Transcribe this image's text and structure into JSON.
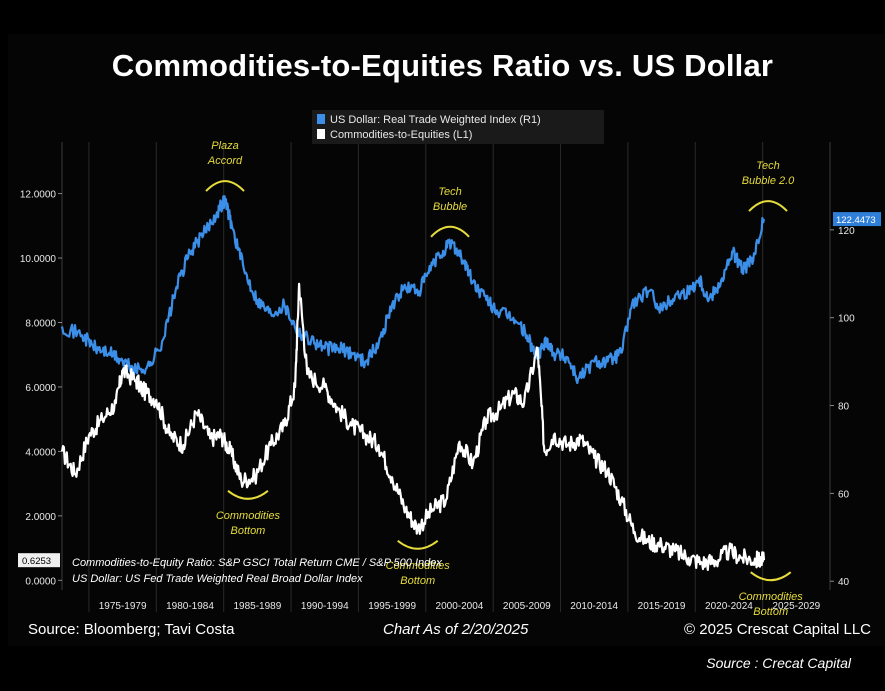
{
  "chart_data": {
    "type": "line",
    "title": "Commodities-to-Equities Ratio vs. US Dollar",
    "series": [
      {
        "name": "US Dollar: Real Trade Weighted Index (R1)",
        "axis": "right",
        "color": "#3b8fe8",
        "points": [
          [
            1973.0,
            98
          ],
          [
            1974.5,
            96
          ],
          [
            1975.5,
            93
          ],
          [
            1976.5,
            92
          ],
          [
            1977.5,
            90
          ],
          [
            1978.5,
            88
          ],
          [
            1979.5,
            89
          ],
          [
            1980.5,
            95
          ],
          [
            1981.5,
            107
          ],
          [
            1982.5,
            115
          ],
          [
            1983.5,
            119
          ],
          [
            1984.5,
            124
          ],
          [
            1985.1,
            127
          ],
          [
            1985.6,
            121
          ],
          [
            1986.5,
            111
          ],
          [
            1987.5,
            104
          ],
          [
            1988.5,
            101
          ],
          [
            1989.5,
            103
          ],
          [
            1990.5,
            97
          ],
          [
            1991.5,
            95
          ],
          [
            1992.5,
            93
          ],
          [
            1993.5,
            93
          ],
          [
            1994.5,
            92
          ],
          [
            1995.5,
            90
          ],
          [
            1996.5,
            94
          ],
          [
            1997.5,
            103
          ],
          [
            1998.5,
            107
          ],
          [
            1999.5,
            106
          ],
          [
            2000.5,
            112
          ],
          [
            2001.5,
            116
          ],
          [
            2002.0,
            117
          ],
          [
            2002.8,
            113
          ],
          [
            2003.5,
            108
          ],
          [
            2004.5,
            104
          ],
          [
            2005.5,
            101
          ],
          [
            2006.5,
            100
          ],
          [
            2007.5,
            96
          ],
          [
            2008.2,
            91
          ],
          [
            2009.0,
            95
          ],
          [
            2009.5,
            92
          ],
          [
            2010.5,
            91
          ],
          [
            2011.3,
            86
          ],
          [
            2012.5,
            90
          ],
          [
            2013.5,
            90
          ],
          [
            2014.5,
            92
          ],
          [
            2015.3,
            103
          ],
          [
            2016.5,
            106
          ],
          [
            2017.5,
            102
          ],
          [
            2018.5,
            105
          ],
          [
            2019.5,
            106
          ],
          [
            2020.3,
            109
          ],
          [
            2021.0,
            104
          ],
          [
            2022.0,
            109
          ],
          [
            2022.8,
            115
          ],
          [
            2023.5,
            111
          ],
          [
            2024.3,
            113
          ],
          [
            2025.1,
            122.4473
          ]
        ]
      },
      {
        "name": "Commodities-to-Equities (L1)",
        "axis": "left",
        "color": "#ffffff",
        "points": [
          [
            1973.0,
            4.0
          ],
          [
            1974.0,
            3.3
          ],
          [
            1975.0,
            4.5
          ],
          [
            1976.0,
            5.0
          ],
          [
            1977.0,
            5.5
          ],
          [
            1977.5,
            6.5
          ],
          [
            1978.5,
            6.2
          ],
          [
            1979.0,
            5.9
          ],
          [
            1980.0,
            5.6
          ],
          [
            1981.0,
            4.5
          ],
          [
            1982.0,
            4.2
          ],
          [
            1983.0,
            5.2
          ],
          [
            1984.0,
            4.4
          ],
          [
            1984.8,
            4.5
          ],
          [
            1985.5,
            4.0
          ],
          [
            1986.3,
            3.1
          ],
          [
            1987.3,
            3.2
          ],
          [
            1988.5,
            4.2
          ],
          [
            1989.5,
            4.8
          ],
          [
            1990.3,
            6.0
          ],
          [
            1990.6,
            9.2
          ],
          [
            1991.2,
            6.4
          ],
          [
            1992.5,
            6.0
          ],
          [
            1993.5,
            5.3
          ],
          [
            1994.5,
            4.8
          ],
          [
            1995.5,
            4.5
          ],
          [
            1996.5,
            4.2
          ],
          [
            1997.5,
            3.2
          ],
          [
            1998.5,
            2.2
          ],
          [
            1999.4,
            1.6
          ],
          [
            2000.5,
            2.2
          ],
          [
            2001.5,
            2.5
          ],
          [
            2002.5,
            4.3
          ],
          [
            2003.5,
            3.6
          ],
          [
            2004.5,
            5.0
          ],
          [
            2005.5,
            5.3
          ],
          [
            2006.5,
            5.8
          ],
          [
            2007.3,
            5.5
          ],
          [
            2008.3,
            7.2
          ],
          [
            2008.8,
            4.0
          ],
          [
            2009.5,
            4.5
          ],
          [
            2010.5,
            4.2
          ],
          [
            2011.5,
            4.4
          ],
          [
            2012.5,
            3.8
          ],
          [
            2013.5,
            3.4
          ],
          [
            2014.5,
            2.5
          ],
          [
            2015.5,
            1.5
          ],
          [
            2016.5,
            1.2
          ],
          [
            2017.5,
            1.1
          ],
          [
            2018.5,
            0.9
          ],
          [
            2019.5,
            0.7
          ],
          [
            2020.5,
            0.55
          ],
          [
            2021.5,
            0.6
          ],
          [
            2022.5,
            0.9
          ],
          [
            2023.5,
            0.7
          ],
          [
            2024.5,
            0.63
          ],
          [
            2025.1,
            0.6253
          ]
        ]
      }
    ],
    "left_axis": {
      "ylim": [
        -0.3,
        13.6
      ],
      "ticks": [
        0,
        2,
        4,
        6,
        8,
        10,
        12
      ],
      "tick_labels": [
        "0.0000",
        "2.0000",
        "4.0000",
        "6.0000",
        "8.0000",
        "10.0000",
        "12.0000"
      ],
      "last_value_label": "0.6253",
      "last_value": 0.6253
    },
    "right_axis": {
      "ylim": [
        38,
        140
      ],
      "ticks": [
        40,
        60,
        80,
        100,
        120
      ],
      "tick_labels": [
        "40",
        "60",
        "80",
        "100",
        "120"
      ],
      "last_value_label": "122.4473",
      "last_value": 122.4473
    },
    "x_axis": {
      "xlim": [
        1973.0,
        2030.0
      ],
      "categories": [
        "1975-1979",
        "1980-1984",
        "1985-1989",
        "1990-1994",
        "1995-1999",
        "2000-2004",
        "2005-2009",
        "2010-2014",
        "2015-2019",
        "2020-2024",
        "2025-2029"
      ],
      "starts": [
        1975,
        1980,
        1985,
        1990,
        1995,
        2000,
        2005,
        2010,
        2015,
        2020,
        2025
      ]
    },
    "legend_position": "top-center",
    "annotations": [
      {
        "id": "plaza",
        "lines": [
          "Plaza",
          "Accord"
        ],
        "x": 1985.1,
        "series": "dollar",
        "side": "above"
      },
      {
        "id": "tech1",
        "lines": [
          "Tech",
          "Bubble"
        ],
        "x": 2001.8,
        "series": "dollar",
        "side": "above"
      },
      {
        "id": "tech2",
        "lines": [
          "Tech",
          "Bubble 2.0"
        ],
        "x": 2025.4,
        "series": "dollar",
        "side": "above"
      },
      {
        "id": "cbottom1",
        "lines": [
          "Commodities",
          "Bottom"
        ],
        "x": 1986.8,
        "series": "ratio",
        "side": "below"
      },
      {
        "id": "cbottom2",
        "lines": [
          "Commodities",
          "Bottom"
        ],
        "x": 1999.4,
        "series": "ratio",
        "side": "below"
      },
      {
        "id": "cbottom3",
        "lines": [
          "Commodities",
          "Bottom"
        ],
        "x": 2025.6,
        "series": "ratio",
        "side": "below"
      }
    ],
    "annotation_color": "#e6dc3c"
  },
  "notes": {
    "line1": "Commodities-to-Equity Ratio: S&P GSCI Total Return CME / S&P 500 Index",
    "line2": "US Dollar: US Fed Trade Weighted Real Broad Dollar Index"
  },
  "footer": {
    "left": "Source: Bloomberg; Tavi Costa",
    "middle": "Chart As of 2/20/2025",
    "right": "© 2025 Crescat Capital LLC"
  },
  "source_note": "Source : Crecat Capital"
}
